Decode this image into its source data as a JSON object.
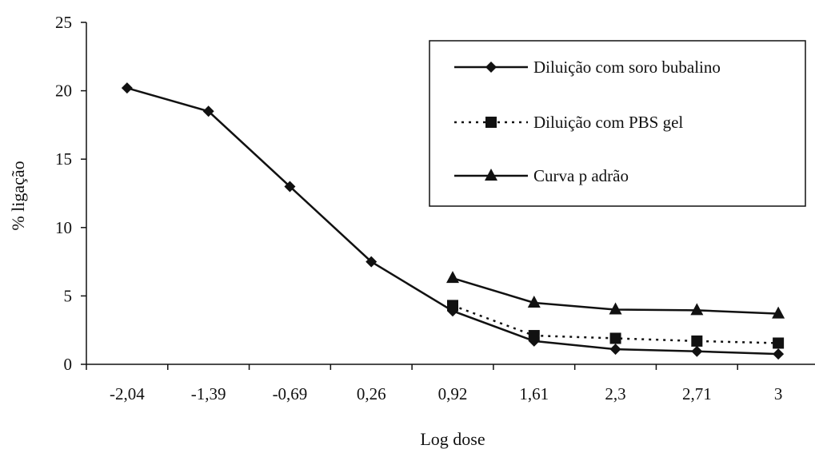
{
  "chart_data": {
    "type": "line",
    "categories": [
      "-2,04",
      "-1,39",
      "-0,69",
      "0,26",
      "0,92",
      "1,61",
      "2,3",
      "2,71",
      "3"
    ],
    "xlabel": "Log dose",
    "ylabel": "% ligação",
    "ylim": [
      0,
      25
    ],
    "yticks": [
      "0",
      "5",
      "10",
      "15",
      "20",
      "25"
    ],
    "grid": false,
    "legend_position": "top-right",
    "series": [
      {
        "name": "Diluição com soro bubalino",
        "marker": "diamond",
        "line": "solid",
        "values": [
          20.2,
          18.5,
          13.0,
          7.5,
          3.9,
          1.7,
          1.1,
          0.95,
          0.75
        ]
      },
      {
        "name": "Diluição com PBS gel",
        "marker": "square",
        "line": "dotted",
        "values": [
          null,
          null,
          null,
          null,
          4.3,
          2.1,
          1.9,
          1.7,
          1.55
        ]
      },
      {
        "name": "Curva p adrão",
        "marker": "triangle",
        "line": "solid",
        "values": [
          null,
          null,
          null,
          null,
          6.3,
          4.5,
          4.0,
          3.95,
          3.7
        ]
      }
    ]
  }
}
